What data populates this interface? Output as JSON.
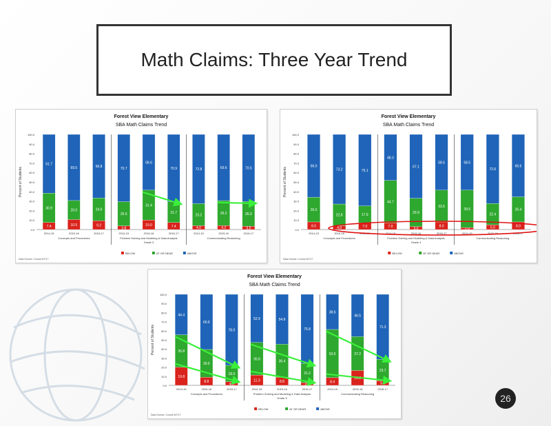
{
  "slide": {
    "title": "Math Claims: Three Year Trend",
    "page_number": "26"
  },
  "colors": {
    "below": "#d9231c",
    "at_or_near": "#2ea82e",
    "above": "#1f64b8",
    "arrow": "#3bef3b",
    "ellipse": "#e01010"
  },
  "chart_data": [
    {
      "type": "bar",
      "stacked": true,
      "title": "Forest View Elementary",
      "subtitle": "SBA Math Claims Trend",
      "ylabel": "Percent of Students",
      "ylim": [
        0,
        100
      ],
      "yticks": [
        "0.0",
        "10.0",
        "20.0",
        "30.0",
        "40.0",
        "50.0",
        "60.0",
        "70.0",
        "80.0",
        "90.0",
        "100.0"
      ],
      "categories": [
        "2014-15",
        "2015-16",
        "2016-17",
        "2014-15",
        "2015-16",
        "2016-17",
        "2014-15",
        "2015-16",
        "2016-17"
      ],
      "groups": [
        "Concepts and Procedures",
        "Problem Solving and Modeling & Data Analysis",
        "Communicating Reasoning"
      ],
      "group_suffix": "Grade 3",
      "legend": [
        "BELOW",
        "AT OR NEAR",
        "ABOVE"
      ],
      "source": "Data Source: Course 8/7/17",
      "series": [
        {
          "name": "BELOW",
          "values": [
            7.4,
            10.5,
            9.2,
            3.8,
            10.0,
            7.4,
            4.0,
            4.2,
            3.5
          ]
        },
        {
          "name": "AT OR NEAR",
          "values": [
            30.9,
            20.0,
            24.0,
            25.5,
            31.4,
            21.7,
            23.2,
            26.2,
            26.0
          ]
        },
        {
          "name": "ABOVE",
          "values": [
            61.7,
            69.5,
            66.8,
            70.7,
            58.6,
            70.9,
            72.8,
            69.6,
            70.5
          ]
        }
      ],
      "arrows": [
        [
          4,
          5
        ],
        [
          7,
          8
        ]
      ]
    },
    {
      "type": "bar",
      "stacked": true,
      "title": "Forest View Elementary",
      "subtitle": "SBA Math Claims Trend",
      "ylabel": "Percent of Students",
      "ylim": [
        0,
        100
      ],
      "yticks": [
        "0.0",
        "10.0",
        "20.0",
        "30.0",
        "40.0",
        "50.0",
        "60.0",
        "70.0",
        "80.0",
        "90.0",
        "100.0"
      ],
      "categories": [
        "2014-15",
        "2015-16",
        "2016-17",
        "2014-15",
        "2015-16",
        "2016-17",
        "2014-15",
        "2015-16",
        "2016-17"
      ],
      "groups": [
        "Concepts and Procedures",
        "Problem Solving and Modeling & Data Analysis",
        "Communicating Reasoning"
      ],
      "group_suffix": "Grade 4",
      "legend": [
        "BELOW",
        "AT OR NEAR",
        "ABOVE"
      ],
      "source": "Data Source: Course 8/7/17",
      "series": [
        {
          "name": "BELOW",
          "values": [
            8.0,
            4.0,
            7.0,
            7.0,
            3.0,
            8.0,
            2.0,
            5.0,
            8.0
          ]
        },
        {
          "name": "AT OR NEAR",
          "values": [
            26.0,
            22.8,
            17.9,
            44.7,
            29.9,
            33.5,
            39.5,
            22.4,
            26.4
          ]
        },
        {
          "name": "ABOVE",
          "values": [
            66.0,
            73.2,
            75.1,
            48.3,
            67.1,
            58.5,
            58.5,
            72.6,
            65.6
          ]
        }
      ],
      "ellipse": true
    },
    {
      "type": "bar",
      "stacked": true,
      "title": "Forest View Elementary",
      "subtitle": "SBA Math Claims Trend",
      "ylabel": "Percent of Students",
      "ylim": [
        0,
        100
      ],
      "yticks": [
        "0.0",
        "10.0",
        "20.0",
        "30.0",
        "40.0",
        "50.0",
        "60.0",
        "70.0",
        "80.0",
        "90.0",
        "100.0"
      ],
      "categories": [
        "2014-15",
        "2015-16",
        "2016-17",
        "2014-15",
        "2015-16",
        "2016-17",
        "2014-15",
        "2015-16",
        "2016-17"
      ],
      "groups": [
        "Concepts and Procedures",
        "Problem Solving and Modeling & Data Analysis",
        "Communicating Reasoning"
      ],
      "group_suffix": "Grade 5",
      "legend": [
        "BELOW",
        "AT OR NEAR",
        "ABOVE"
      ],
      "source": "Data Source: Course 8/7/17",
      "series": [
        {
          "name": "BELOW",
          "values": [
            19.8,
            8.8,
            4.0,
            11.3,
            8.8,
            3.0,
            8.4,
            16.3,
            5.0
          ]
        },
        {
          "name": "AT OR NEAR",
          "values": [
            35.8,
            30.6,
            18.0,
            35.8,
            36.4,
            21.2,
            53.0,
            37.2,
            23.7
          ]
        },
        {
          "name": "ABOVE",
          "values": [
            44.4,
            60.6,
            78.0,
            52.9,
            54.8,
            75.8,
            38.6,
            46.5,
            71.3
          ]
        }
      ],
      "arrows": [
        [
          0,
          2
        ],
        [
          0,
          2,
          "below"
        ],
        [
          3,
          5
        ],
        [
          3,
          5,
          "below"
        ],
        [
          6,
          8
        ],
        [
          6,
          8,
          "below"
        ]
      ]
    }
  ]
}
